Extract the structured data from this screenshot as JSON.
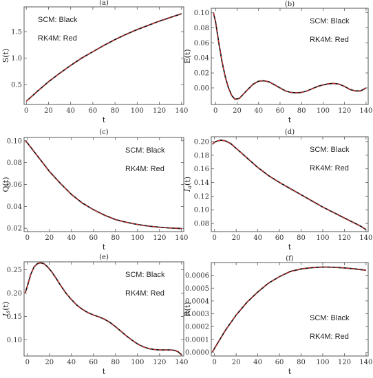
{
  "chart_data": [
    {
      "type": "line",
      "panel_label": "(a)",
      "xlabel": "t",
      "ylabel": "S(t)",
      "xlim": [
        -2,
        142
      ],
      "ylim": [
        0.12,
        1.97
      ],
      "xticks": [
        0,
        20,
        40,
        60,
        80,
        100,
        120,
        140
      ],
      "yticks": [
        0.5,
        1.0,
        1.5
      ],
      "ytick_labels": [
        "0.5",
        "1.0",
        "1.5"
      ],
      "legend": [
        "SCM: Black",
        "RK4M: Red"
      ],
      "legend_pos": "top-left",
      "series": [
        {
          "name": "SCM",
          "color": "#111111",
          "x": [
            0,
            10,
            20,
            30,
            40,
            50,
            60,
            70,
            80,
            90,
            100,
            110,
            120,
            130,
            140
          ],
          "y": [
            0.18,
            0.37,
            0.55,
            0.71,
            0.86,
            1.0,
            1.12,
            1.24,
            1.35,
            1.45,
            1.54,
            1.62,
            1.7,
            1.77,
            1.84
          ]
        },
        {
          "name": "RK4M",
          "color": "#e03030",
          "x": [
            0,
            10,
            20,
            30,
            40,
            50,
            60,
            70,
            80,
            90,
            100,
            110,
            120,
            130,
            140
          ],
          "y": [
            0.18,
            0.37,
            0.55,
            0.71,
            0.86,
            1.0,
            1.12,
            1.24,
            1.35,
            1.45,
            1.54,
            1.62,
            1.7,
            1.77,
            1.84
          ]
        }
      ]
    },
    {
      "type": "line",
      "panel_label": "(b)",
      "xlabel": "t",
      "ylabel": "E(t)",
      "xlim": [
        -4,
        142
      ],
      "ylim": [
        -0.022,
        0.106
      ],
      "xticks": [
        0,
        20,
        40,
        60,
        80,
        100,
        120,
        140
      ],
      "yticks": [
        0.0,
        0.02,
        0.04,
        0.06,
        0.08,
        0.1
      ],
      "ytick_labels": [
        "0.00",
        "0.02",
        "0.04",
        "0.06",
        "0.08",
        "0.10"
      ],
      "legend": [
        "SCM: Black",
        "RK4M: Red"
      ],
      "legend_pos": "top-right",
      "series": [
        {
          "name": "SCM",
          "color": "#111111",
          "x": [
            -2,
            0,
            3,
            6,
            9,
            12,
            15,
            18,
            22,
            26,
            30,
            35,
            40,
            45,
            50,
            55,
            60,
            65,
            70,
            75,
            80,
            85,
            90,
            95,
            100,
            105,
            110,
            115,
            120,
            125,
            130,
            135,
            140
          ],
          "y": [
            0.1,
            0.088,
            0.06,
            0.035,
            0.015,
            0.0,
            -0.01,
            -0.015,
            -0.014,
            -0.008,
            -0.002,
            0.005,
            0.009,
            0.0095,
            0.008,
            0.004,
            0.0,
            -0.004,
            -0.006,
            -0.0065,
            -0.006,
            -0.004,
            -0.001,
            0.002,
            0.004,
            0.0055,
            0.006,
            0.005,
            0.002,
            -0.002,
            -0.004,
            -0.004,
            0.0
          ]
        },
        {
          "name": "RK4M",
          "color": "#e03030",
          "x": [
            -2,
            0,
            3,
            6,
            9,
            12,
            15,
            18,
            22,
            26,
            30,
            35,
            40,
            45,
            50,
            55,
            60,
            65,
            70,
            75,
            80,
            85,
            90,
            95,
            100,
            105,
            110,
            115,
            120,
            125,
            130,
            135,
            140
          ],
          "y": [
            0.1,
            0.088,
            0.06,
            0.035,
            0.015,
            0.0,
            -0.01,
            -0.015,
            -0.014,
            -0.008,
            -0.002,
            0.005,
            0.009,
            0.0095,
            0.008,
            0.004,
            0.0,
            -0.004,
            -0.006,
            -0.0065,
            -0.006,
            -0.004,
            -0.001,
            0.002,
            0.004,
            0.0055,
            0.006,
            0.005,
            0.002,
            -0.002,
            -0.004,
            -0.004,
            0.0
          ]
        }
      ]
    },
    {
      "type": "line",
      "panel_label": "(c)",
      "xlabel": "t",
      "ylabel": "Q(t)",
      "xlim": [
        -3,
        142
      ],
      "ylim": [
        0.017,
        0.103
      ],
      "xticks": [
        0,
        20,
        40,
        60,
        80,
        100,
        120,
        140
      ],
      "yticks": [
        0.02,
        0.04,
        0.06,
        0.08,
        0.1
      ],
      "ytick_labels": [
        "0.02",
        "0.04",
        "0.06",
        "0.08",
        "0.10"
      ],
      "legend": [
        "SCM: Black",
        "RK4M: Red"
      ],
      "legend_pos": "top-right",
      "series": [
        {
          "name": "SCM",
          "color": "#111111",
          "x": [
            -2,
            0,
            10,
            20,
            30,
            40,
            50,
            60,
            70,
            80,
            90,
            100,
            110,
            120,
            130,
            140
          ],
          "y": [
            0.1,
            0.098,
            0.085,
            0.072,
            0.061,
            0.051,
            0.043,
            0.037,
            0.032,
            0.028,
            0.0255,
            0.0235,
            0.022,
            0.021,
            0.0203,
            0.0198
          ]
        },
        {
          "name": "RK4M",
          "color": "#e03030",
          "x": [
            -2,
            0,
            10,
            20,
            30,
            40,
            50,
            60,
            70,
            80,
            90,
            100,
            110,
            120,
            130,
            140
          ],
          "y": [
            0.1,
            0.098,
            0.085,
            0.072,
            0.061,
            0.051,
            0.043,
            0.037,
            0.032,
            0.028,
            0.0255,
            0.0235,
            0.022,
            0.021,
            0.0203,
            0.0198
          ]
        }
      ]
    },
    {
      "type": "line",
      "panel_label": "(d)",
      "xlabel": "t",
      "ylabel": "I_a(t)",
      "xlim": [
        -3,
        142
      ],
      "ylim": [
        0.068,
        0.207
      ],
      "xticks": [
        0,
        20,
        40,
        60,
        80,
        100,
        120,
        140
      ],
      "yticks": [
        0.08,
        0.1,
        0.12,
        0.14,
        0.16,
        0.18,
        0.2
      ],
      "ytick_labels": [
        "0.08",
        "0.10",
        "0.12",
        "0.14",
        "0.16",
        "0.18",
        "0.20"
      ],
      "legend": [
        "SCM: Black",
        "RK4M: Red"
      ],
      "legend_pos": "top-right",
      "series": [
        {
          "name": "SCM",
          "color": "#111111",
          "x": [
            -2,
            0,
            3,
            6,
            10,
            15,
            20,
            25,
            30,
            35,
            40,
            45,
            50,
            60,
            70,
            80,
            90,
            100,
            110,
            120,
            130,
            135,
            140
          ],
          "y": [
            0.196,
            0.199,
            0.201,
            0.202,
            0.201,
            0.197,
            0.19,
            0.183,
            0.176,
            0.169,
            0.162,
            0.156,
            0.15,
            0.14,
            0.131,
            0.122,
            0.113,
            0.104,
            0.096,
            0.088,
            0.08,
            0.076,
            0.071
          ]
        },
        {
          "name": "RK4M",
          "color": "#e03030",
          "x": [
            -2,
            0,
            3,
            6,
            10,
            15,
            20,
            25,
            30,
            35,
            40,
            45,
            50,
            60,
            70,
            80,
            90,
            100,
            110,
            120,
            130,
            135,
            140
          ],
          "y": [
            0.196,
            0.199,
            0.201,
            0.202,
            0.201,
            0.197,
            0.19,
            0.183,
            0.176,
            0.169,
            0.162,
            0.156,
            0.15,
            0.14,
            0.131,
            0.122,
            0.113,
            0.104,
            0.096,
            0.088,
            0.08,
            0.076,
            0.071
          ]
        }
      ]
    },
    {
      "type": "line",
      "panel_label": "(e)",
      "xlabel": "t",
      "ylabel": "I_s(t)",
      "xlim": [
        -3,
        142
      ],
      "ylim": [
        0.065,
        0.267
      ],
      "xticks": [
        0,
        20,
        40,
        60,
        80,
        100,
        120,
        140
      ],
      "yticks": [
        0.1,
        0.15,
        0.2,
        0.25
      ],
      "ytick_labels": [
        "0.10",
        "0.15",
        "0.20",
        "0.25"
      ],
      "legend": [
        "SCM: Black",
        "RK4M: Red"
      ],
      "legend_pos": "top-right",
      "series": [
        {
          "name": "SCM",
          "color": "#111111",
          "x": [
            -2,
            0,
            3,
            6,
            9,
            12,
            15,
            18,
            22,
            26,
            30,
            35,
            40,
            45,
            50,
            55,
            60,
            65,
            70,
            75,
            80,
            85,
            90,
            95,
            100,
            105,
            110,
            115,
            120,
            125,
            130,
            134,
            137,
            140
          ],
          "y": [
            0.2,
            0.215,
            0.24,
            0.256,
            0.263,
            0.265,
            0.263,
            0.257,
            0.246,
            0.232,
            0.217,
            0.2,
            0.186,
            0.174,
            0.165,
            0.158,
            0.153,
            0.149,
            0.144,
            0.137,
            0.128,
            0.118,
            0.108,
            0.099,
            0.091,
            0.085,
            0.081,
            0.079,
            0.078,
            0.078,
            0.078,
            0.077,
            0.074,
            0.067
          ]
        },
        {
          "name": "RK4M",
          "color": "#e03030",
          "x": [
            -2,
            0,
            3,
            6,
            9,
            12,
            15,
            18,
            22,
            26,
            30,
            35,
            40,
            45,
            50,
            55,
            60,
            65,
            70,
            75,
            80,
            85,
            90,
            95,
            100,
            105,
            110,
            115,
            120,
            125,
            130,
            134,
            137,
            140
          ],
          "y": [
            0.2,
            0.215,
            0.24,
            0.256,
            0.263,
            0.265,
            0.263,
            0.257,
            0.246,
            0.232,
            0.217,
            0.2,
            0.186,
            0.174,
            0.165,
            0.158,
            0.153,
            0.149,
            0.144,
            0.137,
            0.128,
            0.118,
            0.108,
            0.099,
            0.091,
            0.085,
            0.081,
            0.079,
            0.078,
            0.078,
            0.078,
            0.077,
            0.074,
            0.067
          ]
        }
      ]
    },
    {
      "type": "line",
      "panel_label": "(f)",
      "xlabel": "t",
      "ylabel": "R(t)",
      "xlim": [
        -3,
        142
      ],
      "ylim": [
        -3e-05,
        0.0007
      ],
      "xticks": [
        0,
        20,
        40,
        60,
        80,
        100,
        120,
        140
      ],
      "yticks": [
        0.0,
        0.0001,
        0.0002,
        0.0003,
        0.0004,
        0.0005,
        0.0006
      ],
      "ytick_labels": [
        "0.0000",
        "0.0001",
        "0.0002",
        "0.0003",
        "0.0004",
        "0.0005",
        "0.0006"
      ],
      "legend": [
        "SCM: Black",
        "RK4M: Red"
      ],
      "legend_pos": "bottom-right",
      "series": [
        {
          "name": "SCM",
          "color": "#111111",
          "x": [
            -2,
            0,
            10,
            20,
            30,
            40,
            50,
            60,
            70,
            80,
            90,
            100,
            110,
            120,
            130,
            140
          ],
          "y": [
            0.0,
            3e-05,
            0.00017,
            0.00029,
            0.00039,
            0.00047,
            0.00054,
            0.00059,
            0.00063,
            0.00065,
            0.00066,
            0.000665,
            0.000663,
            0.000658,
            0.00065,
            0.00064
          ]
        },
        {
          "name": "RK4M",
          "color": "#e03030",
          "x": [
            -2,
            0,
            10,
            20,
            30,
            40,
            50,
            60,
            70,
            80,
            90,
            100,
            110,
            120,
            130,
            140
          ],
          "y": [
            0.0,
            3e-05,
            0.00017,
            0.00029,
            0.00039,
            0.00047,
            0.00054,
            0.00059,
            0.00063,
            0.00065,
            0.00066,
            0.000665,
            0.000663,
            0.000658,
            0.00065,
            0.00064
          ]
        }
      ]
    }
  ]
}
